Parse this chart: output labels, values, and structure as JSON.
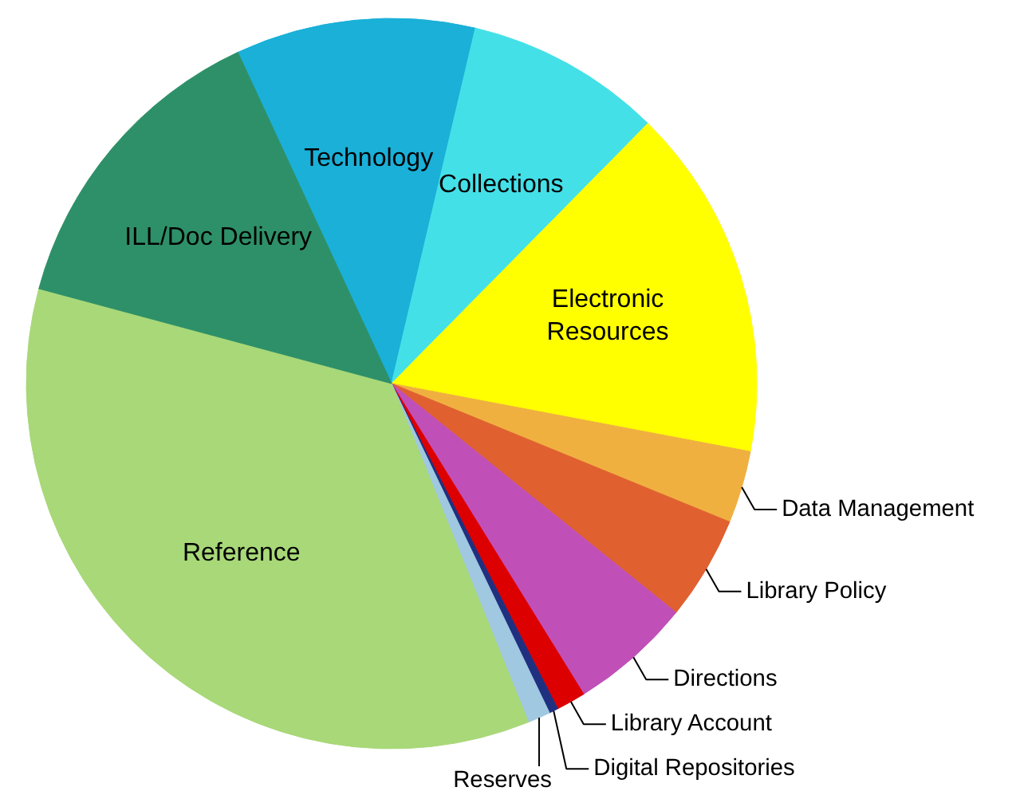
{
  "chart_data": {
    "type": "pie",
    "categories": [
      "Technology",
      "Collections",
      "Electronic Resources",
      "Data Management",
      "Library Policy",
      "Directions",
      "Library Account",
      "Digital Repositories",
      "Reserves",
      "Reference",
      "ILL/Doc Delivery"
    ],
    "values": [
      10.6,
      8.7,
      15.6,
      3.2,
      4.6,
      5.4,
      1.3,
      0.4,
      1.0,
      35.3,
      13.9
    ],
    "colors": [
      "#1ab0d8",
      "#44e0e8",
      "#ffff00",
      "#f0b040",
      "#e06030",
      "#c050b8",
      "#dd0000",
      "#203080",
      "#a0c8e0",
      "#a8d878",
      "#2e9068"
    ]
  }
}
